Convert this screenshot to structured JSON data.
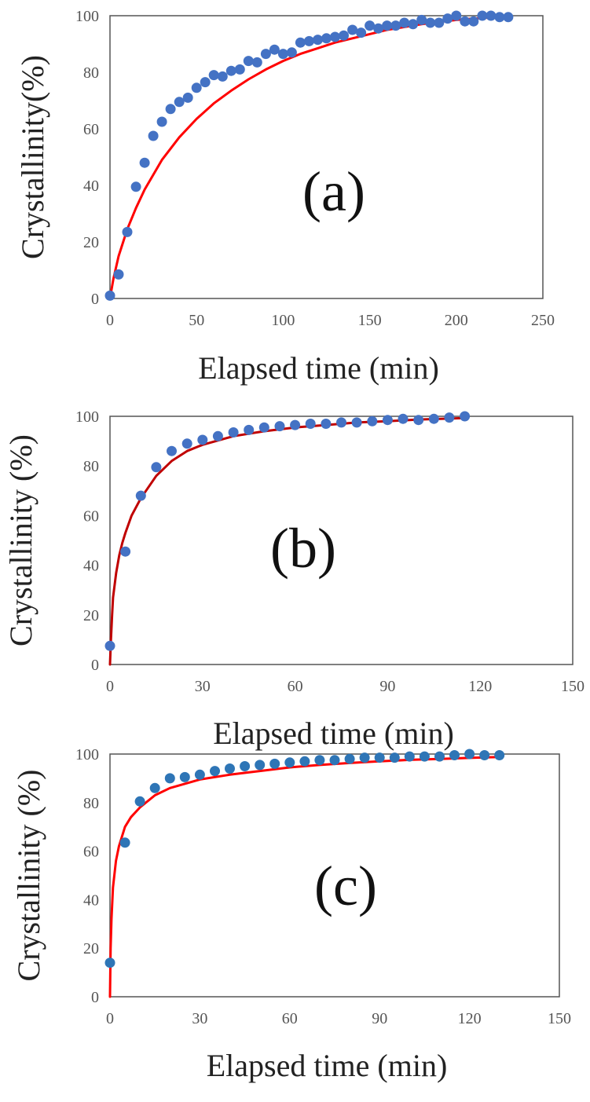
{
  "chart_data": [
    {
      "type": "scatter",
      "panel_label": "(a)",
      "xlabel": "Elapsed time (min)",
      "ylabel": "Crystallinity(%)",
      "xlim": [
        0,
        250
      ],
      "ylim": [
        0,
        100
      ],
      "xticks": [
        0,
        50,
        100,
        150,
        200,
        250
      ],
      "yticks": [
        0,
        20,
        40,
        60,
        80,
        100
      ],
      "grid": false,
      "legend": "none",
      "colors": {
        "points": "#4472C4",
        "fit": "#FF0000"
      },
      "series": [
        {
          "kind": "points",
          "x": [
            0,
            5,
            10,
            15,
            20,
            25,
            30,
            35,
            40,
            45,
            50,
            55,
            60,
            65,
            70,
            75,
            80,
            85,
            90,
            95,
            100,
            105,
            110,
            115,
            120,
            125,
            130,
            135,
            140,
            145,
            150,
            155,
            160,
            165,
            170,
            175,
            180,
            185,
            190,
            195,
            200,
            205,
            210,
            215,
            220,
            225,
            230
          ],
          "y": [
            1,
            8.5,
            23.5,
            39.5,
            48,
            57.5,
            62.5,
            67,
            69.5,
            71,
            74.5,
            76.5,
            79,
            78.5,
            80.5,
            81,
            84,
            83.5,
            86.5,
            88,
            86.5,
            87,
            90.5,
            91,
            91.5,
            92,
            92.5,
            93,
            95,
            94,
            96.5,
            95.5,
            96.5,
            96.5,
            97.5,
            97,
            98.5,
            97.5,
            97.5,
            99,
            100,
            98,
            98,
            100,
            100,
            99.5,
            99.5
          ]
        },
        {
          "kind": "fit",
          "x": [
            0,
            2,
            5,
            10,
            15,
            20,
            30,
            40,
            50,
            60,
            70,
            80,
            90,
            100,
            110,
            120,
            130,
            140,
            150,
            160,
            170,
            180,
            190,
            200,
            210,
            220,
            230
          ],
          "y": [
            0,
            7,
            15,
            24.5,
            32,
            38.5,
            49,
            57,
            63.5,
            69,
            73.5,
            77.5,
            81,
            84,
            86.5,
            88.5,
            90.5,
            92,
            93.5,
            95,
            96,
            97,
            97.8,
            98.5,
            99,
            99.4,
            99.7
          ]
        }
      ]
    },
    {
      "type": "scatter",
      "panel_label": "(b)",
      "xlabel": "Elapsed time (min)",
      "ylabel": "Crystallinity (%)",
      "xlim": [
        0,
        150
      ],
      "ylim": [
        0,
        100
      ],
      "xticks": [
        0,
        30,
        60,
        90,
        120,
        150
      ],
      "yticks": [
        0,
        20,
        40,
        60,
        80,
        100
      ],
      "grid": false,
      "legend": "none",
      "colors": {
        "points": "#4472C4",
        "fit": "#C00000"
      },
      "series": [
        {
          "kind": "points",
          "x": [
            0,
            5,
            10,
            15,
            20,
            25,
            30,
            35,
            40,
            45,
            50,
            55,
            60,
            65,
            70,
            75,
            80,
            85,
            90,
            95,
            100,
            105,
            110,
            115
          ],
          "y": [
            7.5,
            45.5,
            68,
            79.5,
            86,
            89,
            90.5,
            92,
            93.5,
            94.5,
            95.5,
            96,
            96.5,
            97,
            97,
            97.5,
            97.5,
            98,
            98.5,
            99,
            98.5,
            99,
            99.5,
            100
          ]
        },
        {
          "kind": "fit",
          "x": [
            0,
            0.3,
            0.7,
            1,
            2,
            3,
            4,
            5,
            7,
            10,
            15,
            20,
            25,
            30,
            40,
            50,
            60,
            70,
            80,
            90,
            100,
            115
          ],
          "y": [
            0,
            10,
            20,
            27,
            37,
            44,
            49,
            53,
            60,
            67,
            76,
            82,
            86,
            88.5,
            92,
            94,
            95.5,
            96.5,
            97.5,
            98,
            98.7,
            99.3
          ]
        }
      ]
    },
    {
      "type": "scatter",
      "panel_label": "(c)",
      "xlabel": "Elapsed time (min)",
      "ylabel": "Crystallinity (%)",
      "xlim": [
        0,
        150
      ],
      "ylim": [
        0,
        100
      ],
      "xticks": [
        0,
        30,
        60,
        90,
        120,
        150
      ],
      "yticks": [
        0,
        20,
        40,
        60,
        80,
        100
      ],
      "grid": false,
      "legend": "none",
      "colors": {
        "points": "#2E75B6",
        "fit": "#FF0000"
      },
      "series": [
        {
          "kind": "points",
          "x": [
            0,
            5,
            10,
            15,
            20,
            25,
            30,
            35,
            40,
            45,
            50,
            55,
            60,
            65,
            70,
            75,
            80,
            85,
            90,
            95,
            100,
            105,
            110,
            115,
            120,
            125,
            130
          ],
          "y": [
            14,
            63.5,
            80.5,
            86,
            90,
            90.5,
            91.5,
            93,
            94,
            95,
            95.5,
            96,
            96.5,
            97,
            97.5,
            97.5,
            98,
            98.5,
            98.5,
            98.5,
            99,
            99,
            99,
            99.5,
            100,
            99.5,
            99.5
          ]
        },
        {
          "kind": "fit",
          "x": [
            0,
            0.2,
            0.5,
            1,
            2,
            3,
            5,
            7,
            10,
            15,
            20,
            30,
            40,
            50,
            60,
            70,
            80,
            90,
            100,
            110,
            120,
            130
          ],
          "y": [
            0,
            20,
            32,
            45,
            56,
            62,
            70,
            74,
            78,
            83,
            86,
            89.5,
            91.5,
            93,
            94.5,
            95.5,
            96.3,
            97,
            97.6,
            98,
            98.4,
            98.8
          ]
        }
      ]
    }
  ]
}
